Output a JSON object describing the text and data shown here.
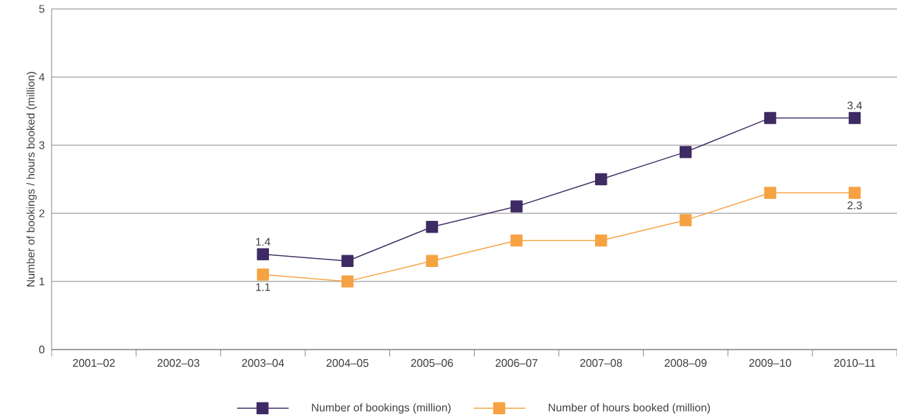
{
  "chart_data": {
    "type": "line",
    "ylabel": "Number of bookings / hours booked (million)",
    "categories": [
      "2001–02",
      "2002–03",
      "2003–04",
      "2004–05",
      "2005–06",
      "2006–07",
      "2007–08",
      "2008–09",
      "2009–10",
      "2010–11"
    ],
    "series": [
      {
        "name": "Number of bookings (million)",
        "color": "#3f2b63",
        "values": [
          null,
          null,
          1.4,
          1.3,
          1.8,
          2.1,
          2.5,
          2.9,
          3.4,
          3.4
        ],
        "value_labels": [
          null,
          null,
          "1.4",
          null,
          null,
          null,
          null,
          null,
          null,
          "3.4"
        ]
      },
      {
        "name": "Number of hours booked (million)",
        "color": "#f6a243",
        "values": [
          null,
          null,
          1.1,
          1.0,
          1.3,
          1.6,
          1.6,
          1.9,
          2.3,
          2.3
        ],
        "value_labels": [
          null,
          null,
          "1.1",
          null,
          null,
          null,
          null,
          null,
          null,
          "2.3"
        ]
      }
    ],
    "ylim": [
      0,
      5
    ],
    "yticks": [
      0,
      1,
      2,
      3,
      4,
      5
    ],
    "grid": "y",
    "legend": "bottom",
    "marker": "square",
    "line_style": "solid"
  }
}
